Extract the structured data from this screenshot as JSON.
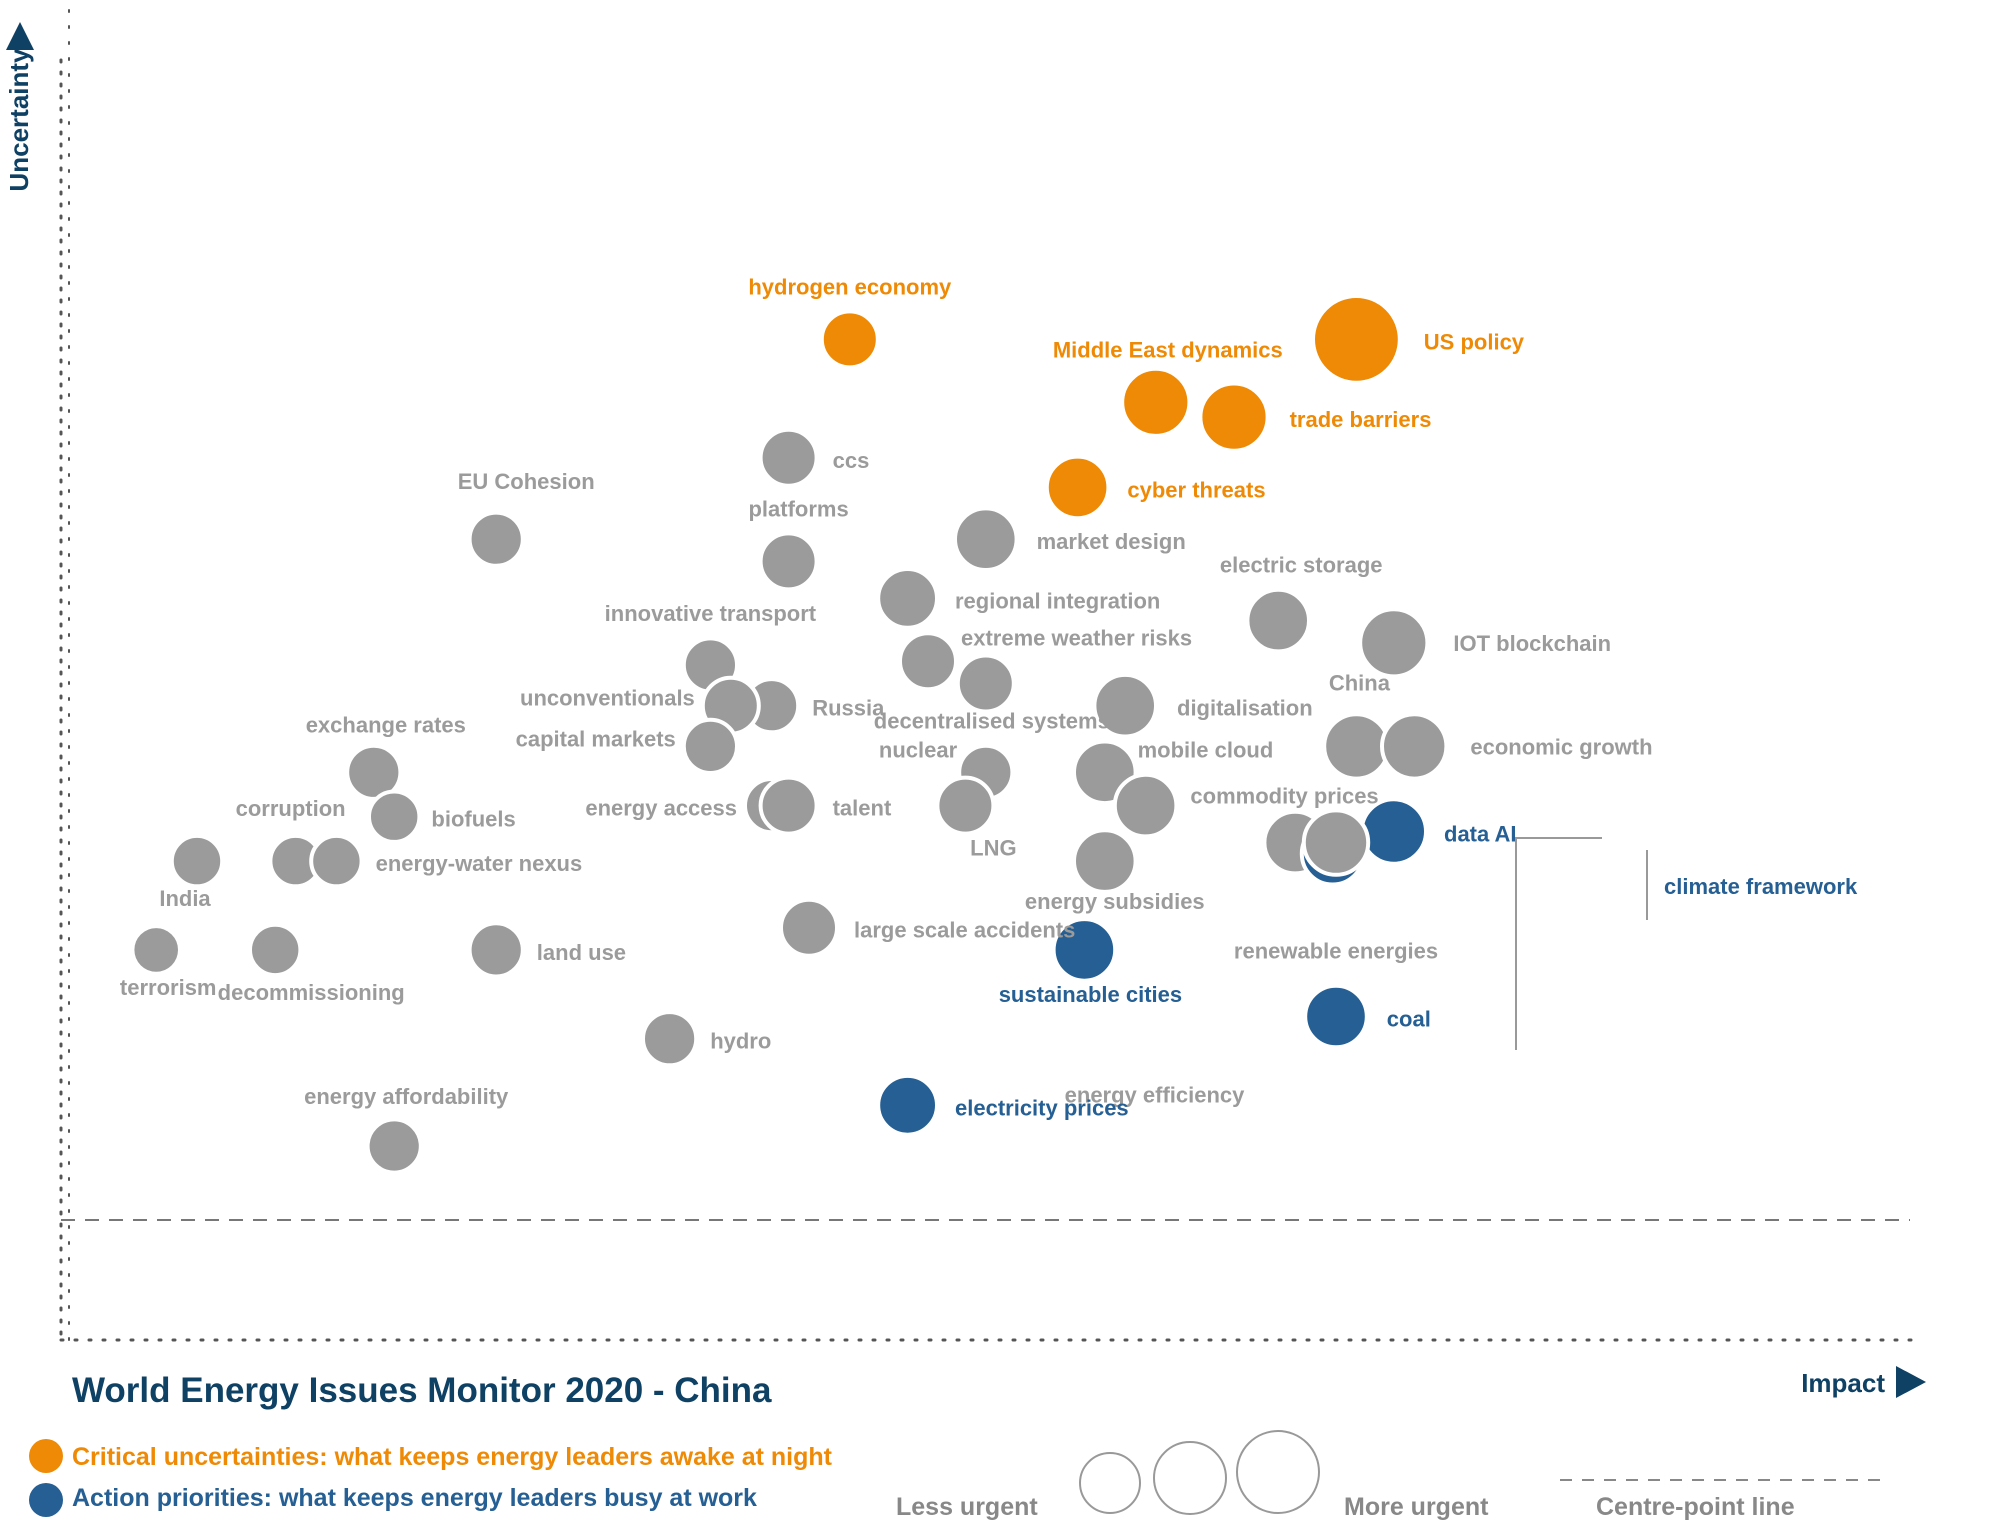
{
  "chart_data": {
    "type": "scatter",
    "title": "World Energy Issues Monitor 2020 - China",
    "xlabel": "Impact",
    "ylabel": "Uncertainty",
    "colors": {
      "grey": "#9b9b9b",
      "orange": "#ee8a05",
      "blue": "#255f93",
      "navy": "#0e4164"
    },
    "points": [
      {
        "name": "hydrogen economy",
        "x": 3.32,
        "y": 3.38,
        "size": 1.0,
        "category": "orange"
      },
      {
        "name": "US policy",
        "x": 4.81,
        "y": 3.38,
        "size": 1.55,
        "category": "orange"
      },
      {
        "name": "Middle East dynamics",
        "x": 4.22,
        "y": 3.21,
        "size": 1.2,
        "category": "orange"
      },
      {
        "name": "trade barriers",
        "x": 4.45,
        "y": 3.17,
        "size": 1.2,
        "category": "orange"
      },
      {
        "name": "cyber threats",
        "x": 3.99,
        "y": 2.98,
        "size": 1.1,
        "category": "orange"
      },
      {
        "name": "ccs",
        "x": 3.14,
        "y": 3.06,
        "size": 1.0,
        "category": "grey"
      },
      {
        "name": "EU Cohesion",
        "x": 2.28,
        "y": 2.84,
        "size": 0.95,
        "category": "grey"
      },
      {
        "name": "platforms",
        "x": 3.14,
        "y": 2.78,
        "size": 1.0,
        "category": "grey"
      },
      {
        "name": "market design",
        "x": 3.72,
        "y": 2.84,
        "size": 1.1,
        "category": "grey"
      },
      {
        "name": "regional integration",
        "x": 3.49,
        "y": 2.68,
        "size": 1.05,
        "category": "grey"
      },
      {
        "name": "electric storage",
        "x": 4.58,
        "y": 2.62,
        "size": 1.1,
        "category": "grey"
      },
      {
        "name": "IOT blockchain",
        "x": 4.92,
        "y": 2.56,
        "size": 1.2,
        "category": "grey"
      },
      {
        "name": "innovative transport",
        "x": 2.91,
        "y": 2.5,
        "size": 0.95,
        "category": "grey"
      },
      {
        "name": "extreme weather risks",
        "x": 3.55,
        "y": 2.51,
        "size": 1.0,
        "category": "grey"
      },
      {
        "name": "decentralised systems",
        "x": 3.72,
        "y": 2.45,
        "size": 1.0,
        "category": "grey"
      },
      {
        "name": "Russia",
        "x": 3.09,
        "y": 2.39,
        "size": 0.95,
        "category": "grey"
      },
      {
        "name": "unconventionals",
        "x": 2.97,
        "y": 2.39,
        "size": 1.0,
        "category": "grey"
      },
      {
        "name": "digitalisation",
        "x": 4.13,
        "y": 2.39,
        "size": 1.1,
        "category": "grey"
      },
      {
        "name": "China",
        "x": 4.81,
        "y": 2.28,
        "size": 1.15,
        "category": "grey"
      },
      {
        "name": "economic growth",
        "x": 4.98,
        "y": 2.28,
        "size": 1.15,
        "category": "grey"
      },
      {
        "name": "capital markets",
        "x": 2.91,
        "y": 2.28,
        "size": 0.95,
        "category": "grey"
      },
      {
        "name": "exchange rates",
        "x": 1.92,
        "y": 2.21,
        "size": 0.95,
        "category": "grey"
      },
      {
        "name": "nuclear",
        "x": 3.72,
        "y": 2.21,
        "size": 0.95,
        "category": "grey"
      },
      {
        "name": "mobile cloud",
        "x": 4.07,
        "y": 2.21,
        "size": 1.1,
        "category": "grey"
      },
      {
        "name": "biofuels",
        "x": 1.98,
        "y": 2.09,
        "size": 0.9,
        "category": "grey"
      },
      {
        "name": "energy access",
        "x": 3.09,
        "y": 2.12,
        "size": 0.95,
        "category": "grey"
      },
      {
        "name": "talent",
        "x": 3.14,
        "y": 2.12,
        "size": 1.0,
        "category": "grey"
      },
      {
        "name": "LNG",
        "x": 3.66,
        "y": 2.12,
        "size": 1.0,
        "category": "grey"
      },
      {
        "name": "commodity prices",
        "x": 4.19,
        "y": 2.12,
        "size": 1.1,
        "category": "grey"
      },
      {
        "name": "India",
        "x": 1.4,
        "y": 1.97,
        "size": 0.9,
        "category": "grey"
      },
      {
        "name": "corruption",
        "x": 1.69,
        "y": 1.97,
        "size": 0.9,
        "category": "grey"
      },
      {
        "name": "energy-water nexus",
        "x": 1.81,
        "y": 1.97,
        "size": 0.9,
        "category": "grey"
      },
      {
        "name": "energy efficiency",
        "x": 4.63,
        "y": 2.02,
        "size": 1.1,
        "category": "grey"
      },
      {
        "name": "climate framework",
        "x": 4.74,
        "y": 1.99,
        "size": 1.1,
        "category": "blue"
      },
      {
        "name": "data AI",
        "x": 4.92,
        "y": 2.05,
        "size": 1.15,
        "category": "blue"
      },
      {
        "name": "renewable energies",
        "x": 4.75,
        "y": 2.02,
        "size": 1.15,
        "category": "grey"
      },
      {
        "name": "energy subsidies",
        "x": 4.07,
        "y": 1.97,
        "size": 1.1,
        "category": "grey"
      },
      {
        "name": "terrorism",
        "x": 1.28,
        "y": 1.73,
        "size": 0.85,
        "category": "grey"
      },
      {
        "name": "decommissioning",
        "x": 1.63,
        "y": 1.73,
        "size": 0.9,
        "category": "grey"
      },
      {
        "name": "land use",
        "x": 2.28,
        "y": 1.73,
        "size": 0.95,
        "category": "grey"
      },
      {
        "name": "large scale accidents",
        "x": 3.2,
        "y": 1.79,
        "size": 1.0,
        "category": "grey"
      },
      {
        "name": "sustainable cities",
        "x": 4.01,
        "y": 1.73,
        "size": 1.1,
        "category": "blue"
      },
      {
        "name": "coal",
        "x": 4.75,
        "y": 1.55,
        "size": 1.1,
        "category": "blue"
      },
      {
        "name": "hydro",
        "x": 2.79,
        "y": 1.49,
        "size": 0.95,
        "category": "grey"
      },
      {
        "name": "electricity prices",
        "x": 3.49,
        "y": 1.31,
        "size": 1.05,
        "category": "blue"
      },
      {
        "name": "energy affordability",
        "x": 1.98,
        "y": 1.2,
        "size": 0.95,
        "category": "grey"
      }
    ],
    "legend": {
      "critical": "Critical uncertainties: what keeps energy leaders awake at night",
      "action": "Action priorities: what keeps energy leaders busy at work",
      "less_urgent": "Less urgent",
      "more_urgent": "More urgent",
      "centre_line": "Centre-point  line"
    }
  }
}
